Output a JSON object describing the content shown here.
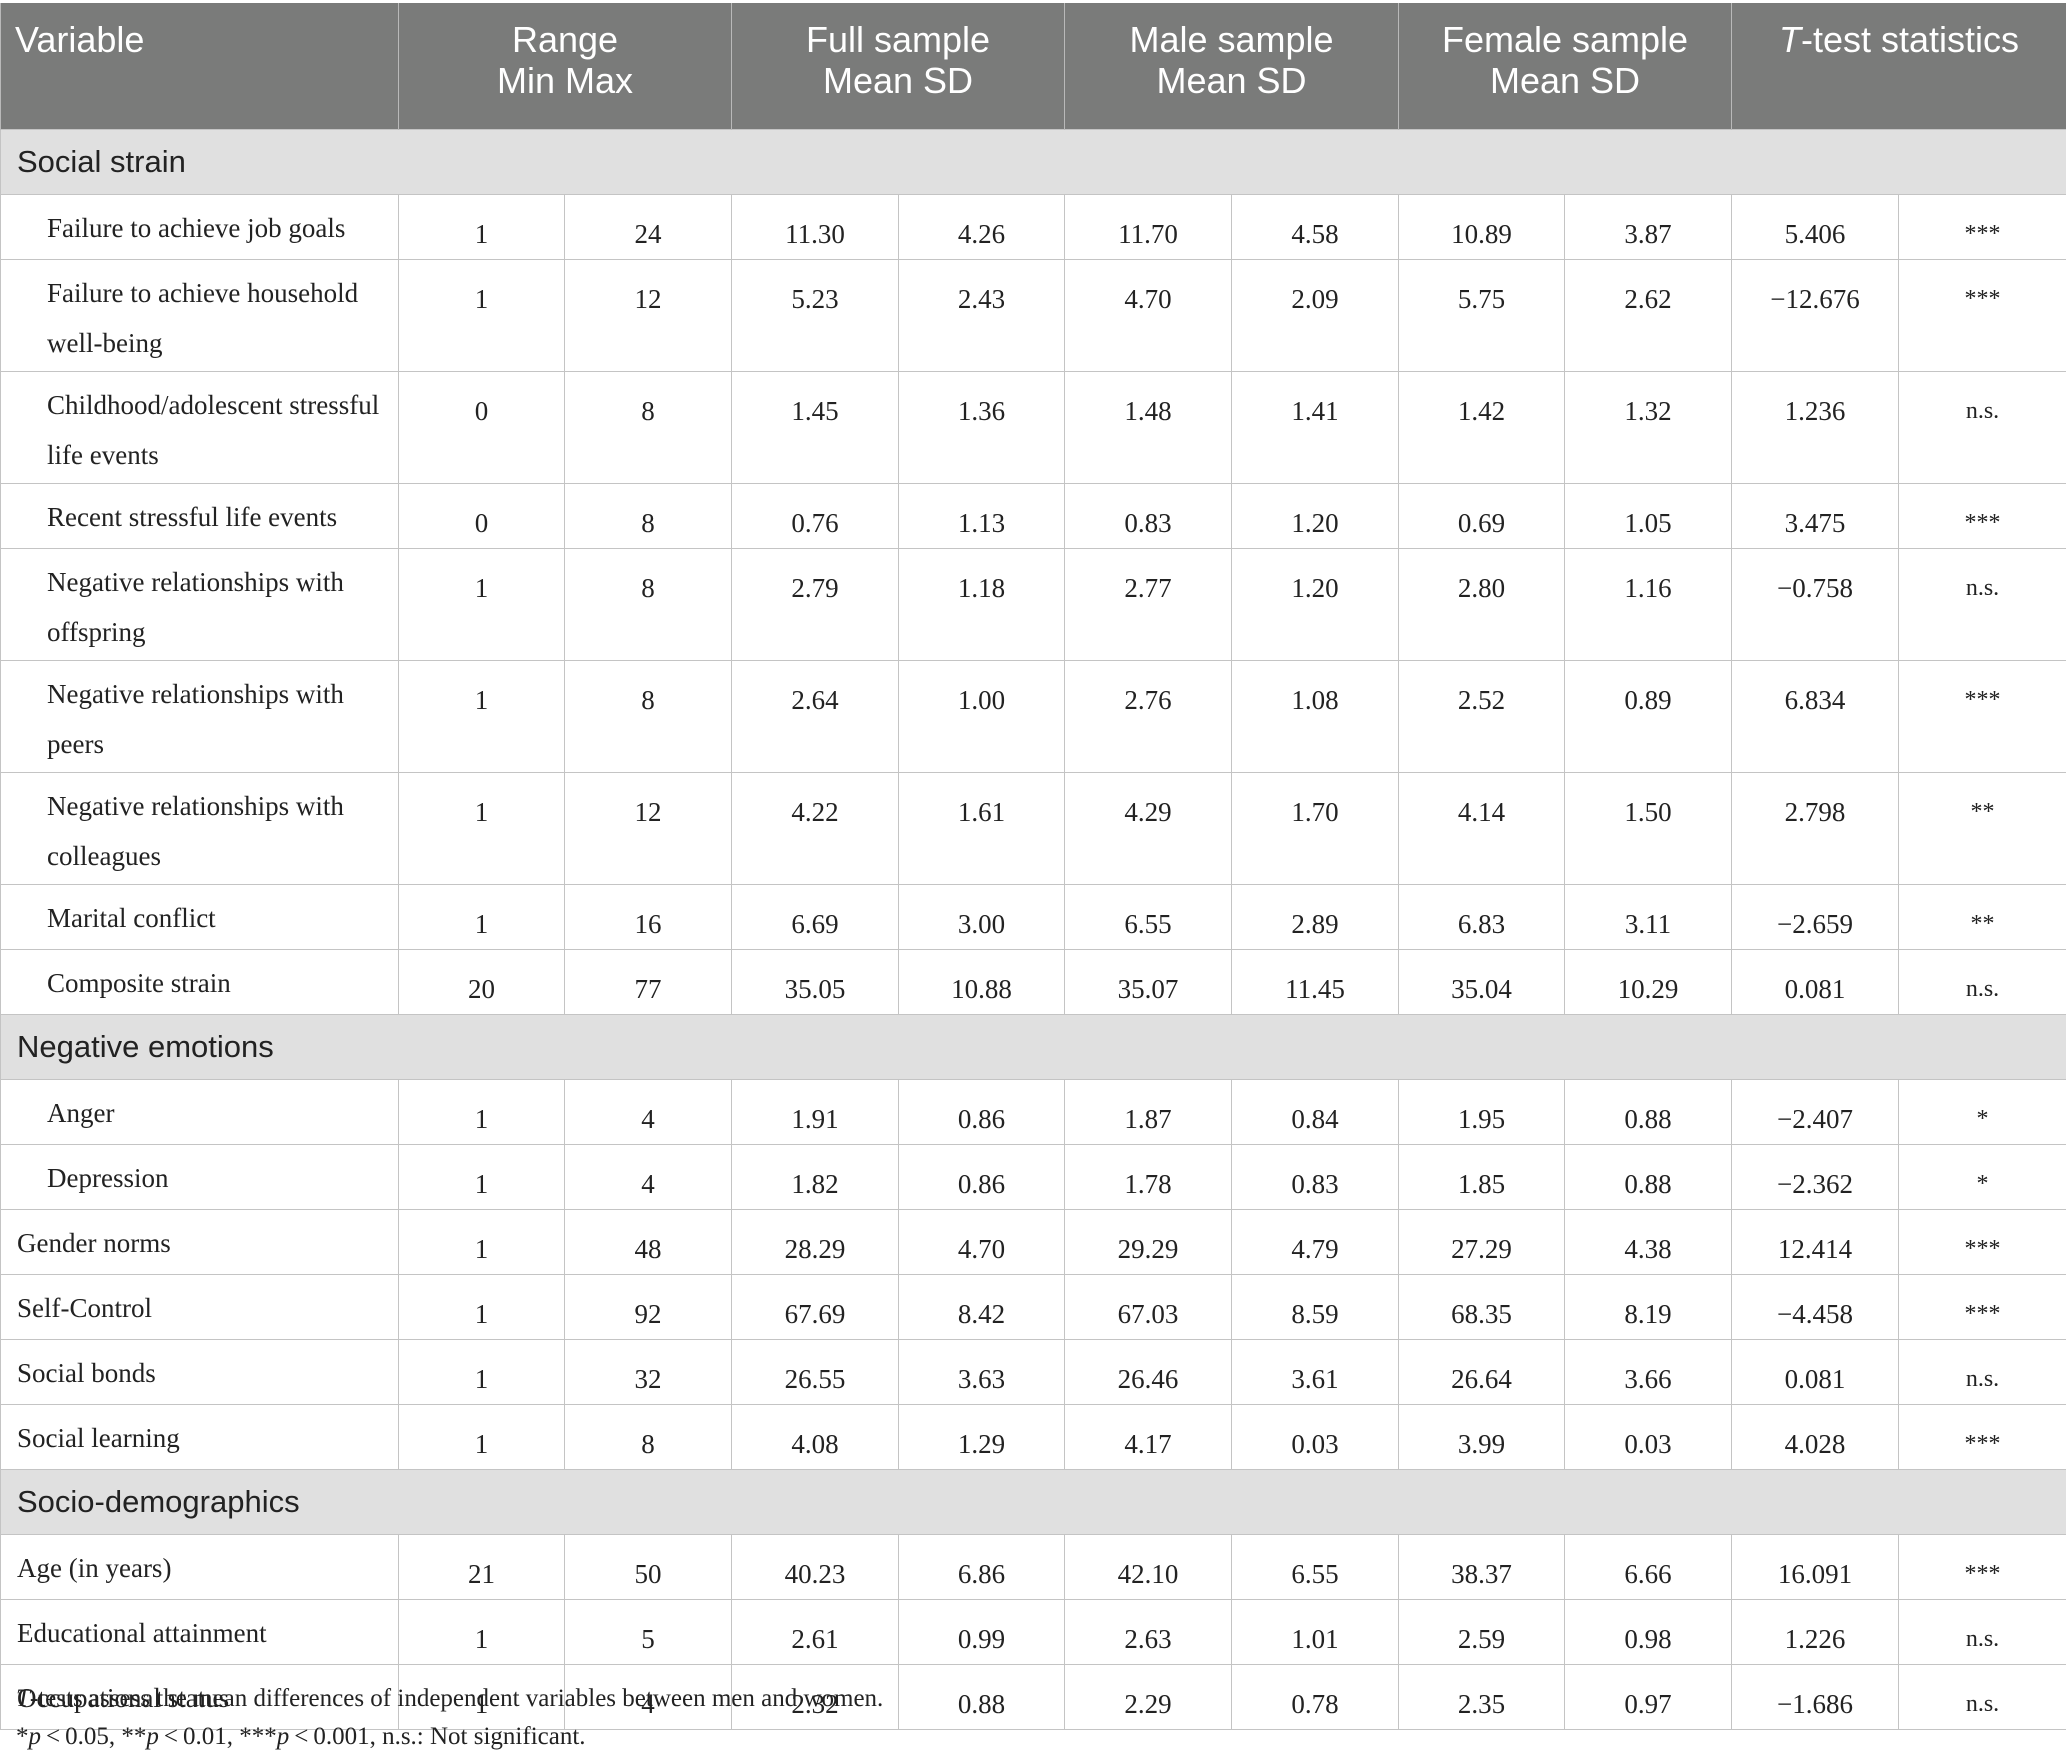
{
  "header": {
    "variable": "Variable",
    "range": [
      "Range",
      "Min Max"
    ],
    "full": [
      "Full sample",
      "Mean SD"
    ],
    "male": [
      "Male sample",
      "Mean SD"
    ],
    "female": [
      "Female sample",
      "Mean SD"
    ],
    "ttest_italic": "T",
    "ttest_rest": "-test statistics"
  },
  "sections": [
    {
      "title": "Social strain",
      "rows": [
        {
          "label": "Failure to achieve job goals",
          "min": "1",
          "max": "24",
          "full_mean": "11.30",
          "full_sd": "4.26",
          "male_mean": "11.70",
          "male_sd": "4.58",
          "female_mean": "10.89",
          "female_sd": "3.87",
          "t": "5.406",
          "sig": "***",
          "indent": true,
          "tall": false
        },
        {
          "label": "Failure to achieve household well-being",
          "min": "1",
          "max": "12",
          "full_mean": "5.23",
          "full_sd": "2.43",
          "male_mean": "4.70",
          "male_sd": "2.09",
          "female_mean": "5.75",
          "female_sd": "2.62",
          "t": "−12.676",
          "sig": "***",
          "indent": true,
          "tall": true
        },
        {
          "label": "Childhood/adolescent stressful life events",
          "min": "0",
          "max": "8",
          "full_mean": "1.45",
          "full_sd": "1.36",
          "male_mean": "1.48",
          "male_sd": "1.41",
          "female_mean": "1.42",
          "female_sd": "1.32",
          "t": "1.236",
          "sig": "n.s.",
          "indent": true,
          "tall": true
        },
        {
          "label": "Recent stressful life events",
          "min": "0",
          "max": "8",
          "full_mean": "0.76",
          "full_sd": "1.13",
          "male_mean": "0.83",
          "male_sd": "1.20",
          "female_mean": "0.69",
          "female_sd": "1.05",
          "t": "3.475",
          "sig": "***",
          "indent": true,
          "tall": false
        },
        {
          "label": "Negative relationships with offspring",
          "min": "1",
          "max": "8",
          "full_mean": "2.79",
          "full_sd": "1.18",
          "male_mean": "2.77",
          "male_sd": "1.20",
          "female_mean": "2.80",
          "female_sd": "1.16",
          "t": "−0.758",
          "sig": "n.s.",
          "indent": true,
          "tall": true
        },
        {
          "label": "Negative relationships with peers",
          "min": "1",
          "max": "8",
          "full_mean": "2.64",
          "full_sd": "1.00",
          "male_mean": "2.76",
          "male_sd": "1.08",
          "female_mean": "2.52",
          "female_sd": "0.89",
          "t": "6.834",
          "sig": "***",
          "indent": true,
          "tall": true
        },
        {
          "label": "Negative relationships with colleagues",
          "min": "1",
          "max": "12",
          "full_mean": "4.22",
          "full_sd": "1.61",
          "male_mean": "4.29",
          "male_sd": "1.70",
          "female_mean": "4.14",
          "female_sd": "1.50",
          "t": "2.798",
          "sig": "**",
          "indent": true,
          "tall": true
        },
        {
          "label": "Marital conflict",
          "min": "1",
          "max": "16",
          "full_mean": "6.69",
          "full_sd": "3.00",
          "male_mean": "6.55",
          "male_sd": "2.89",
          "female_mean": "6.83",
          "female_sd": "3.11",
          "t": "−2.659",
          "sig": "**",
          "indent": true,
          "tall": false
        },
        {
          "label": "Composite strain",
          "min": "20",
          "max": "77",
          "full_mean": "35.05",
          "full_sd": "10.88",
          "male_mean": "35.07",
          "male_sd": "11.45",
          "female_mean": "35.04",
          "female_sd": "10.29",
          "t": "0.081",
          "sig": "n.s.",
          "indent": true,
          "tall": false
        }
      ]
    },
    {
      "title": "Negative emotions",
      "rows": [
        {
          "label": "Anger",
          "min": "1",
          "max": "4",
          "full_mean": "1.91",
          "full_sd": "0.86",
          "male_mean": "1.87",
          "male_sd": "0.84",
          "female_mean": "1.95",
          "female_sd": "0.88",
          "t": "−2.407",
          "sig": "*",
          "indent": true,
          "tall": false
        },
        {
          "label": "Depression",
          "min": "1",
          "max": "4",
          "full_mean": "1.82",
          "full_sd": "0.86",
          "male_mean": "1.78",
          "male_sd": "0.83",
          "female_mean": "1.85",
          "female_sd": "0.88",
          "t": "−2.362",
          "sig": "*",
          "indent": true,
          "tall": false
        },
        {
          "label": "Gender norms",
          "min": "1",
          "max": "48",
          "full_mean": "28.29",
          "full_sd": "4.70",
          "male_mean": "29.29",
          "male_sd": "4.79",
          "female_mean": "27.29",
          "female_sd": "4.38",
          "t": "12.414",
          "sig": "***",
          "indent": false,
          "tall": false
        },
        {
          "label": "Self-Control",
          "min": "1",
          "max": "92",
          "full_mean": "67.69",
          "full_sd": "8.42",
          "male_mean": "67.03",
          "male_sd": "8.59",
          "female_mean": "68.35",
          "female_sd": "8.19",
          "t": "−4.458",
          "sig": "***",
          "indent": false,
          "tall": false
        },
        {
          "label": "Social bonds",
          "min": "1",
          "max": "32",
          "full_mean": "26.55",
          "full_sd": "3.63",
          "male_mean": "26.46",
          "male_sd": "3.61",
          "female_mean": "26.64",
          "female_sd": "3.66",
          "t": "0.081",
          "sig": "n.s.",
          "indent": false,
          "tall": false
        },
        {
          "label": "Social learning",
          "min": "1",
          "max": "8",
          "full_mean": "4.08",
          "full_sd": "1.29",
          "male_mean": "4.17",
          "male_sd": "0.03",
          "female_mean": "3.99",
          "female_sd": "0.03",
          "t": "4.028",
          "sig": "***",
          "indent": false,
          "tall": false
        }
      ]
    },
    {
      "title": "Socio-demographics",
      "rows": [
        {
          "label": "Age (in years)",
          "min": "21",
          "max": "50",
          "full_mean": "40.23",
          "full_sd": "6.86",
          "male_mean": "42.10",
          "male_sd": "6.55",
          "female_mean": "38.37",
          "female_sd": "6.66",
          "t": "16.091",
          "sig": "***",
          "indent": false,
          "tall": false
        },
        {
          "label": "Educational attainment",
          "min": "1",
          "max": "5",
          "full_mean": "2.61",
          "full_sd": "0.99",
          "male_mean": "2.63",
          "male_sd": "1.01",
          "female_mean": "2.59",
          "female_sd": "0.98",
          "t": "1.226",
          "sig": "n.s.",
          "indent": false,
          "tall": false
        },
        {
          "label": "Occupational status",
          "min": "1",
          "max": "4",
          "full_mean": "2.32",
          "full_sd": "0.88",
          "male_mean": "2.29",
          "male_sd": "0.78",
          "female_mean": "2.35",
          "female_sd": "0.97",
          "t": "−1.686",
          "sig": "n.s.",
          "indent": false,
          "tall": false
        }
      ]
    }
  ],
  "notes": {
    "line1_italic": "T",
    "line1_rest": "-tests assess the mean differences of independent variables between men and women.",
    "line2": [
      {
        "text": "*",
        "italic": false
      },
      {
        "text": "p",
        "italic": true
      },
      {
        "text": " < 0.05, **",
        "italic": false
      },
      {
        "text": "p",
        "italic": true
      },
      {
        "text": " < 0.01, ***",
        "italic": false
      },
      {
        "text": "p",
        "italic": true
      },
      {
        "text": " < 0.001, n.s.: Not significant.",
        "italic": false
      }
    ]
  },
  "colors": {
    "header_bg": "#7a7b7a",
    "section_bg": "#e0e0e0",
    "border": "#c4c4c4"
  }
}
